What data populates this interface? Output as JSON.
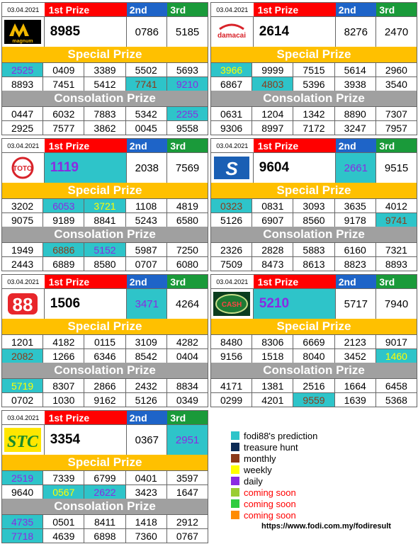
{
  "labels": {
    "first": "1st Prize",
    "second": "2nd",
    "third": "3rd",
    "special": "Special Prize",
    "consolation": "Consolation Prize"
  },
  "cards": [
    {
      "id": "magnum",
      "date": "03.04.2021",
      "logo": "MAGNUM",
      "first": "8985",
      "second": "0786",
      "third": "5185",
      "special": [
        [
          "2525",
          "0409",
          "3389",
          "5502",
          "5693"
        ],
        [
          "8893",
          "7451",
          "5412",
          "7741",
          "9210"
        ]
      ],
      "consolation": [
        [
          "0447",
          "6032",
          "7883",
          "5342",
          "2255"
        ],
        [
          "2925",
          "7577",
          "3862",
          "0045",
          "9558"
        ]
      ]
    },
    {
      "id": "damacai",
      "date": "03.04.2021",
      "logo": "damacai",
      "first": "2614",
      "second": "8276",
      "third": "2470",
      "special": [
        [
          "3966",
          "9999",
          "7515",
          "5614",
          "2960"
        ],
        [
          "6867",
          "4803",
          "5396",
          "3938",
          "3540"
        ]
      ],
      "consolation": [
        [
          "0631",
          "1204",
          "1342",
          "8890",
          "7307"
        ],
        [
          "9306",
          "8997",
          "7172",
          "3247",
          "7957"
        ]
      ]
    },
    {
      "id": "toto",
      "date": "03.04.2021",
      "logo": "TOTO",
      "first": "1119",
      "second": "2038",
      "third": "7569",
      "special": [
        [
          "3202",
          "6053",
          "3721",
          "1108",
          "4819"
        ],
        [
          "9075",
          "9189",
          "8841",
          "5243",
          "6580"
        ]
      ],
      "consolation": [
        [
          "1949",
          "6886",
          "5152",
          "5987",
          "7250"
        ],
        [
          "2443",
          "6889",
          "8580",
          "0707",
          "6080"
        ]
      ]
    },
    {
      "id": "sabah",
      "date": "03.04.2021",
      "logo": "S",
      "first": "9604",
      "second": "2661",
      "third": "9515",
      "special": [
        [
          "0323",
          "0831",
          "3093",
          "3635",
          "4012"
        ],
        [
          "5126",
          "6907",
          "8560",
          "9178",
          "9741"
        ]
      ],
      "consolation": [
        [
          "2326",
          "2828",
          "5883",
          "6160",
          "7321"
        ],
        [
          "7509",
          "8473",
          "8613",
          "8823",
          "8893"
        ]
      ]
    },
    {
      "id": "88",
      "date": "03.04.2021",
      "logo": "88",
      "first": "1506",
      "second": "3471",
      "third": "4264",
      "special": [
        [
          "1201",
          "4182",
          "0115",
          "3109",
          "4282"
        ],
        [
          "2082",
          "1266",
          "6346",
          "8542",
          "0404"
        ]
      ],
      "consolation": [
        [
          "5719",
          "8307",
          "2866",
          "2432",
          "8834"
        ],
        [
          "0702",
          "1030",
          "9162",
          "5126",
          "0349"
        ]
      ]
    },
    {
      "id": "cash",
      "date": "03.04.2021",
      "logo": "CASH",
      "first": "5210",
      "second": "5717",
      "third": "7940",
      "special": [
        [
          "8480",
          "8306",
          "6669",
          "2123",
          "9017"
        ],
        [
          "9156",
          "1518",
          "8040",
          "3452",
          "1460"
        ]
      ],
      "consolation": [
        [
          "4171",
          "1381",
          "2516",
          "1664",
          "6458"
        ],
        [
          "0299",
          "4201",
          "9559",
          "1639",
          "5368"
        ]
      ]
    },
    {
      "id": "stc",
      "date": "03.04.2021",
      "logo": "STC",
      "first": "3354",
      "second": "0367",
      "third": "2951",
      "special": [
        [
          "2519",
          "7339",
          "6799",
          "0401",
          "3597"
        ],
        [
          "9640",
          "0567",
          "2622",
          "3423",
          "1647"
        ]
      ],
      "consolation": [
        [
          "4735",
          "0501",
          "8411",
          "1418",
          "2912"
        ],
        [
          "7718",
          "4639",
          "6898",
          "7360",
          "0767"
        ]
      ]
    }
  ],
  "legend": [
    {
      "color": "#2ec4c9",
      "label": "fodi88's prediction",
      "text_color": "#000000"
    },
    {
      "color": "#0b2a55",
      "label": "treasure hunt",
      "text_color": "#000000"
    },
    {
      "color": "#8b3a1a",
      "label": "monthly",
      "text_color": "#000000"
    },
    {
      "color": "#ffff00",
      "label": "weekly",
      "text_color": "#000000"
    },
    {
      "color": "#8a2be2",
      "label": "daily",
      "text_color": "#000000"
    },
    {
      "color": "#9acd32",
      "label": "coming soon",
      "text_color": "#ff0000"
    },
    {
      "color": "#2ecc40",
      "label": "coming soon",
      "text_color": "#ff0000"
    },
    {
      "color": "#ff8c00",
      "label": "coming soon",
      "text_color": "#ff0000"
    }
  ],
  "url": "https://www.fodi.com.my/fodiresult"
}
